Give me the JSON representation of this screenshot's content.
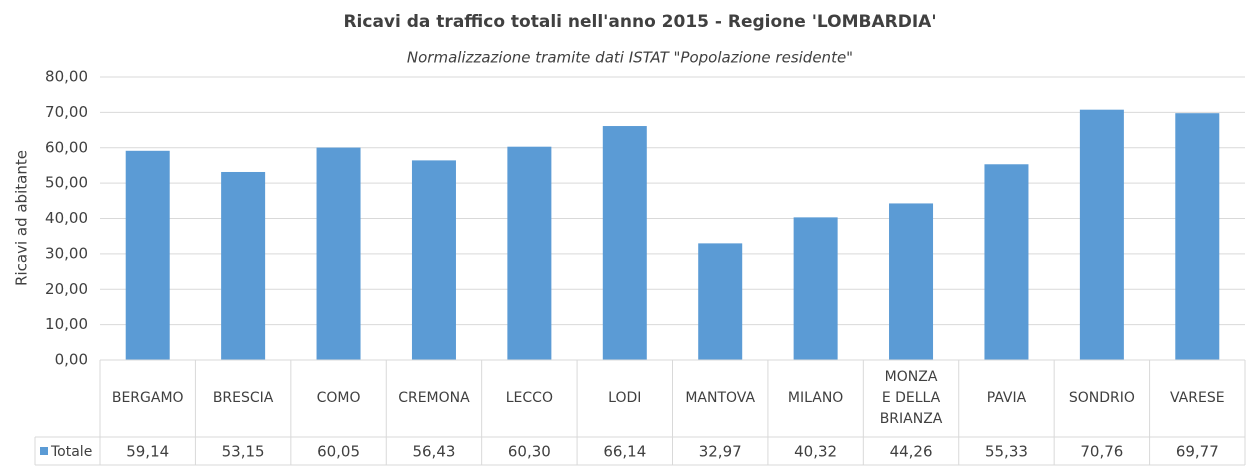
{
  "chart_data": {
    "type": "bar",
    "title": "Ricavi da traffico totali nell'anno 2015 - Regione 'LOMBARDIA'",
    "subtitle": "Normalizzazione tramite dati ISTAT \"Popolazione residente\"",
    "y_label": "Ricavi ad abitante",
    "categories": [
      "BERGAMO",
      "BRESCIA",
      "COMO",
      "CREMONA",
      "LECCO",
      "LODI",
      "MANTOVA",
      "MILANO",
      "MONZA E DELLA BRIANZA",
      "PAVIA",
      "SONDRIO",
      "VARESE"
    ],
    "series": [
      {
        "name": "Totale",
        "color": "#5b9bd5",
        "values": [
          59.14,
          53.15,
          60.05,
          56.43,
          60.3,
          66.14,
          32.97,
          40.32,
          44.26,
          55.33,
          70.76,
          69.77
        ],
        "value_labels": [
          "59,14",
          "53,15",
          "60,05",
          "56,43",
          "60,30",
          "66,14",
          "32,97",
          "40,32",
          "44,26",
          "55,33",
          "70,76",
          "69,77"
        ]
      }
    ],
    "ylim": [
      0,
      80
    ],
    "yticks": [
      {
        "value": 0,
        "label": "0,00"
      },
      {
        "value": 10,
        "label": "10,00"
      },
      {
        "value": 20,
        "label": "20,00"
      },
      {
        "value": 30,
        "label": "30,00"
      },
      {
        "value": 40,
        "label": "40,00"
      },
      {
        "value": 50,
        "label": "50,00"
      },
      {
        "value": 60,
        "label": "60,00"
      },
      {
        "value": 70,
        "label": "70,00"
      },
      {
        "value": 80,
        "label": "80,00"
      }
    ],
    "grid": true
  }
}
